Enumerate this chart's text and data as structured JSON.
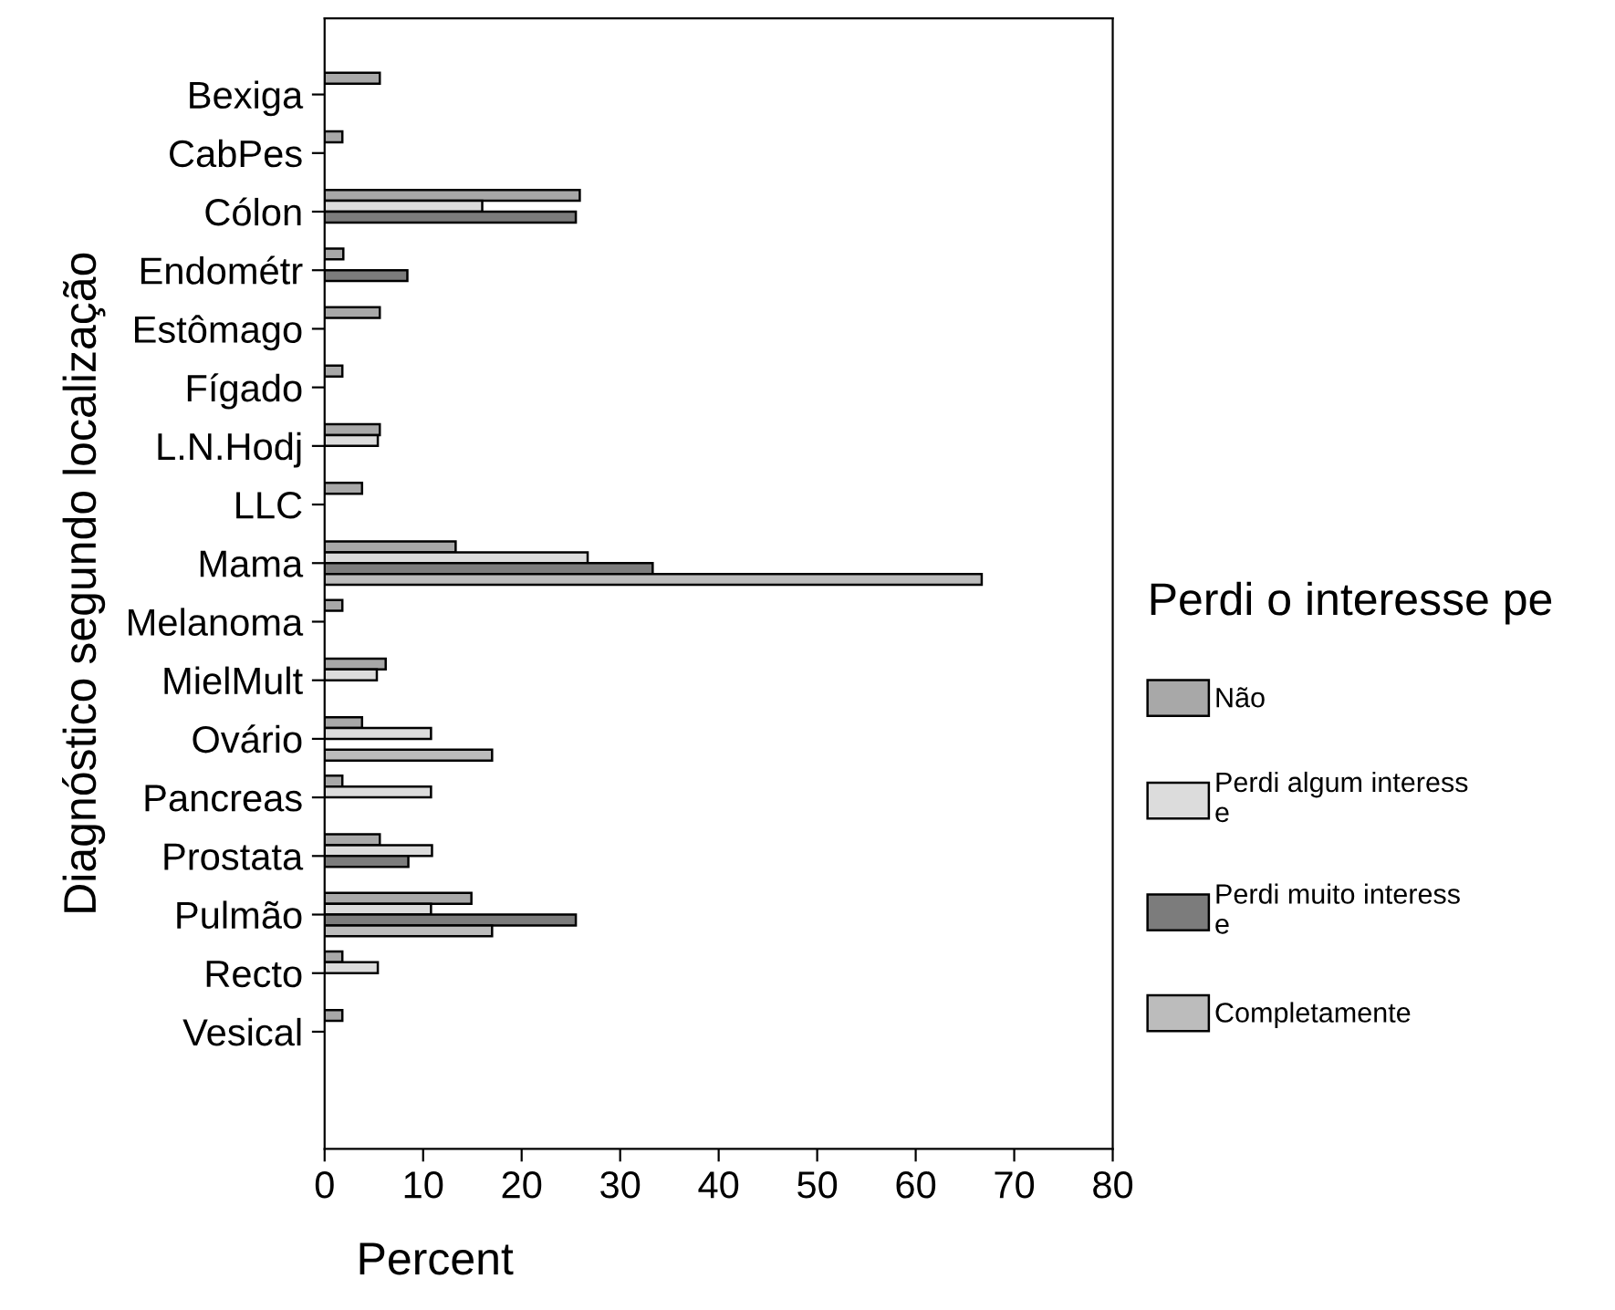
{
  "chart_data": {
    "type": "bar",
    "orientation": "horizontal",
    "xlabel": "Percent",
    "ylabel": "Diagnóstico segundo localização",
    "legend_title": "Perdi o interesse pe",
    "categories": [
      "Bexiga",
      "CabPes",
      "Cólon",
      "Endométr",
      "Estômago",
      "Fígado",
      "L.N.Hodj",
      "LLC",
      "Mama",
      "Melanoma",
      "MielMult",
      "Ovário",
      "Pancreas",
      "Prostata",
      "Pulmão",
      "Recto",
      "Vesical"
    ],
    "series": [
      {
        "name": "Não",
        "color": "#a8a8a8",
        "values": [
          5.6,
          1.8,
          25.9,
          1.9,
          5.6,
          1.8,
          5.6,
          3.8,
          13.3,
          1.8,
          6.2,
          3.8,
          1.8,
          5.6,
          14.9,
          1.8,
          1.8
        ]
      },
      {
        "name": "Perdi algum interess\ne",
        "color": "#dcdcdc",
        "values": [
          null,
          null,
          16,
          null,
          null,
          null,
          5.4,
          null,
          26.7,
          null,
          5.3,
          10.8,
          10.8,
          10.9,
          10.8,
          5.4,
          null
        ]
      },
      {
        "name": "Perdi muito interess\ne",
        "color": "#7c7c7c",
        "values": [
          null,
          null,
          25.5,
          8.4,
          null,
          null,
          null,
          null,
          33.3,
          null,
          null,
          null,
          null,
          8.5,
          25.5,
          null,
          null
        ]
      },
      {
        "name": "Completamente",
        "color": "#bcbcbc",
        "values": [
          null,
          null,
          null,
          null,
          null,
          null,
          null,
          null,
          66.7,
          null,
          null,
          17,
          null,
          null,
          17,
          null,
          null
        ]
      }
    ],
    "xlim": [
      0,
      80
    ],
    "xticks": [
      0,
      10,
      20,
      30,
      40,
      50,
      60,
      70,
      80
    ],
    "grid": false,
    "legend": "right"
  }
}
